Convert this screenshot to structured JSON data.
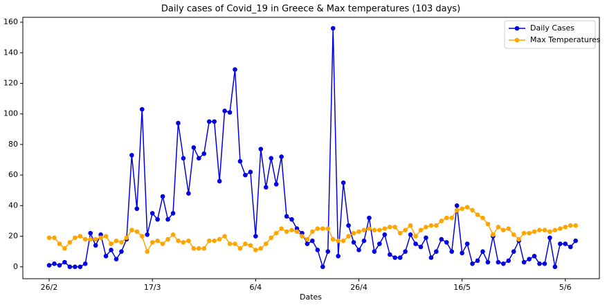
{
  "chart_data": {
    "type": "line",
    "title": "Daily cases of Covid_19 in Greece & Max temperatures (103 days)",
    "x_label": "Dates",
    "categories": [
      "26/2",
      null,
      null,
      null,
      null,
      null,
      null,
      null,
      null,
      null,
      null,
      null,
      null,
      null,
      null,
      null,
      null,
      null,
      null,
      null,
      "17/3",
      null,
      null,
      null,
      null,
      null,
      null,
      null,
      null,
      null,
      null,
      null,
      null,
      null,
      null,
      null,
      null,
      null,
      null,
      null,
      "6/4",
      null,
      null,
      null,
      null,
      null,
      null,
      null,
      null,
      null,
      null,
      null,
      null,
      null,
      null,
      null,
      null,
      null,
      null,
      null,
      "26/4",
      null,
      null,
      null,
      null,
      null,
      null,
      null,
      null,
      null,
      null,
      null,
      null,
      null,
      null,
      null,
      null,
      null,
      null,
      null,
      "16/5",
      null,
      null,
      null,
      null,
      null,
      null,
      null,
      null,
      null,
      null,
      null,
      null,
      null,
      null,
      null,
      null,
      null,
      null,
      null,
      "5/6",
      null,
      null
    ],
    "series": [
      {
        "name": "Daily Cases",
        "color": "#0000e0",
        "values": [
          1,
          2,
          1,
          3,
          0,
          0,
          0,
          2,
          22,
          14,
          21,
          7,
          11,
          5,
          10,
          18,
          73,
          38,
          103,
          21,
          35,
          31,
          46,
          31,
          35,
          94,
          71,
          48,
          78,
          71,
          74,
          95,
          95,
          56,
          102,
          101,
          129,
          69,
          60,
          62,
          20,
          77,
          52,
          71,
          54,
          72,
          33,
          31,
          25,
          22,
          15,
          17,
          11,
          0,
          10,
          156,
          7,
          55,
          27,
          16,
          11,
          17,
          32,
          10,
          15,
          21,
          8,
          6,
          6,
          10,
          21,
          15,
          13,
          19,
          6,
          10,
          18,
          16,
          10,
          40,
          9,
          15,
          2,
          4,
          10,
          3,
          20,
          3,
          2,
          4,
          10,
          17,
          3,
          5,
          7,
          2,
          2,
          19,
          0,
          15,
          15,
          13,
          17
        ]
      },
      {
        "name": "Max Temperatures",
        "color": "#ffa500",
        "values": [
          19,
          19,
          15,
          12,
          16,
          19,
          20,
          18,
          18,
          18,
          19,
          20,
          15,
          17,
          16,
          19,
          24,
          23,
          20,
          10,
          16,
          17,
          15,
          18,
          21,
          17,
          16,
          17,
          12,
          12,
          12,
          17,
          17,
          18,
          20,
          15,
          15,
          12,
          15,
          14,
          11,
          12,
          15,
          19,
          22,
          25,
          23,
          24,
          23,
          20,
          18,
          23,
          25,
          25,
          25,
          18,
          17,
          17,
          20,
          22,
          23,
          24,
          25,
          24,
          24,
          25,
          26,
          26,
          22,
          24,
          27,
          20,
          24,
          26,
          27,
          27,
          30,
          32,
          32,
          37,
          38,
          39,
          37,
          34,
          32,
          28,
          21,
          26,
          24,
          25,
          21,
          18,
          22,
          22,
          23,
          24,
          24,
          23,
          24,
          25,
          26,
          27,
          27
        ]
      }
    ],
    "ylim": [
      -7.8,
      163.2
    ],
    "yticks": [
      0,
      20,
      40,
      60,
      80,
      100,
      120,
      140,
      160
    ],
    "legend": "upper right"
  }
}
